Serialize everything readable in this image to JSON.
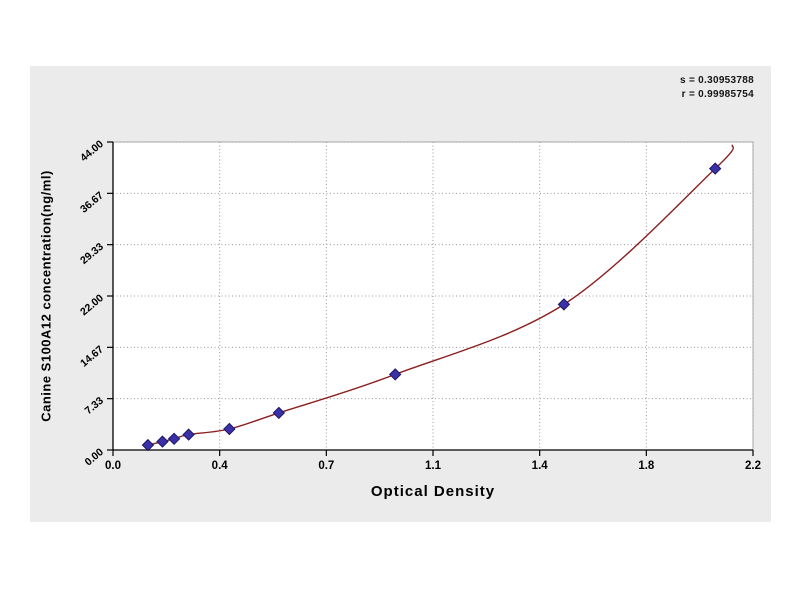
{
  "stats": {
    "line1": "s = 0.30953788",
    "line2": "r = 0.99985754"
  },
  "chart_data": {
    "type": "scatter",
    "title": "",
    "xlabel": "Optical Density",
    "ylabel": "Canine S100A12 concentration(ng/ml)",
    "xlim": [
      0,
      2.2
    ],
    "ylim": [
      0,
      44
    ],
    "grid": "dotted",
    "legend": "none",
    "x_ticks": [
      {
        "v": 0,
        "label": "0.0"
      },
      {
        "v": 0.3667,
        "label": "0.4"
      },
      {
        "v": 0.7333,
        "label": "0.7"
      },
      {
        "v": 1.1,
        "label": "1.1"
      },
      {
        "v": 1.4667,
        "label": "1.4"
      },
      {
        "v": 1.8333,
        "label": "1.8"
      },
      {
        "v": 2.2,
        "label": "2.2"
      }
    ],
    "y_ticks": [
      {
        "v": 0,
        "label": "0.00"
      },
      {
        "v": 7.333,
        "label": "7.33"
      },
      {
        "v": 14.667,
        "label": "14.67"
      },
      {
        "v": 22,
        "label": "22.00"
      },
      {
        "v": 29.333,
        "label": "29.33"
      },
      {
        "v": 36.667,
        "label": "36.67"
      },
      {
        "v": 44,
        "label": "44.00"
      }
    ],
    "points": [
      [
        0.12,
        0.7
      ],
      [
        0.17,
        1.2
      ],
      [
        0.21,
        1.6
      ],
      [
        0.26,
        2.2
      ],
      [
        0.4,
        3.0
      ],
      [
        0.57,
        5.3
      ],
      [
        0.97,
        10.8
      ],
      [
        1.55,
        20.8
      ],
      [
        2.07,
        40.2
      ]
    ],
    "curve_extension": [
      2.13,
      43.6
    ],
    "colors": {
      "marker_fill": "#3a31a8",
      "marker_stroke": "#1d1668",
      "curve": "#8b2020",
      "grid": "#9a9a9a",
      "axis": "#000000",
      "plot_bg": "#ffffff",
      "panel_bg": "#ebebeb",
      "plot_border": "#a8a8a8"
    }
  }
}
